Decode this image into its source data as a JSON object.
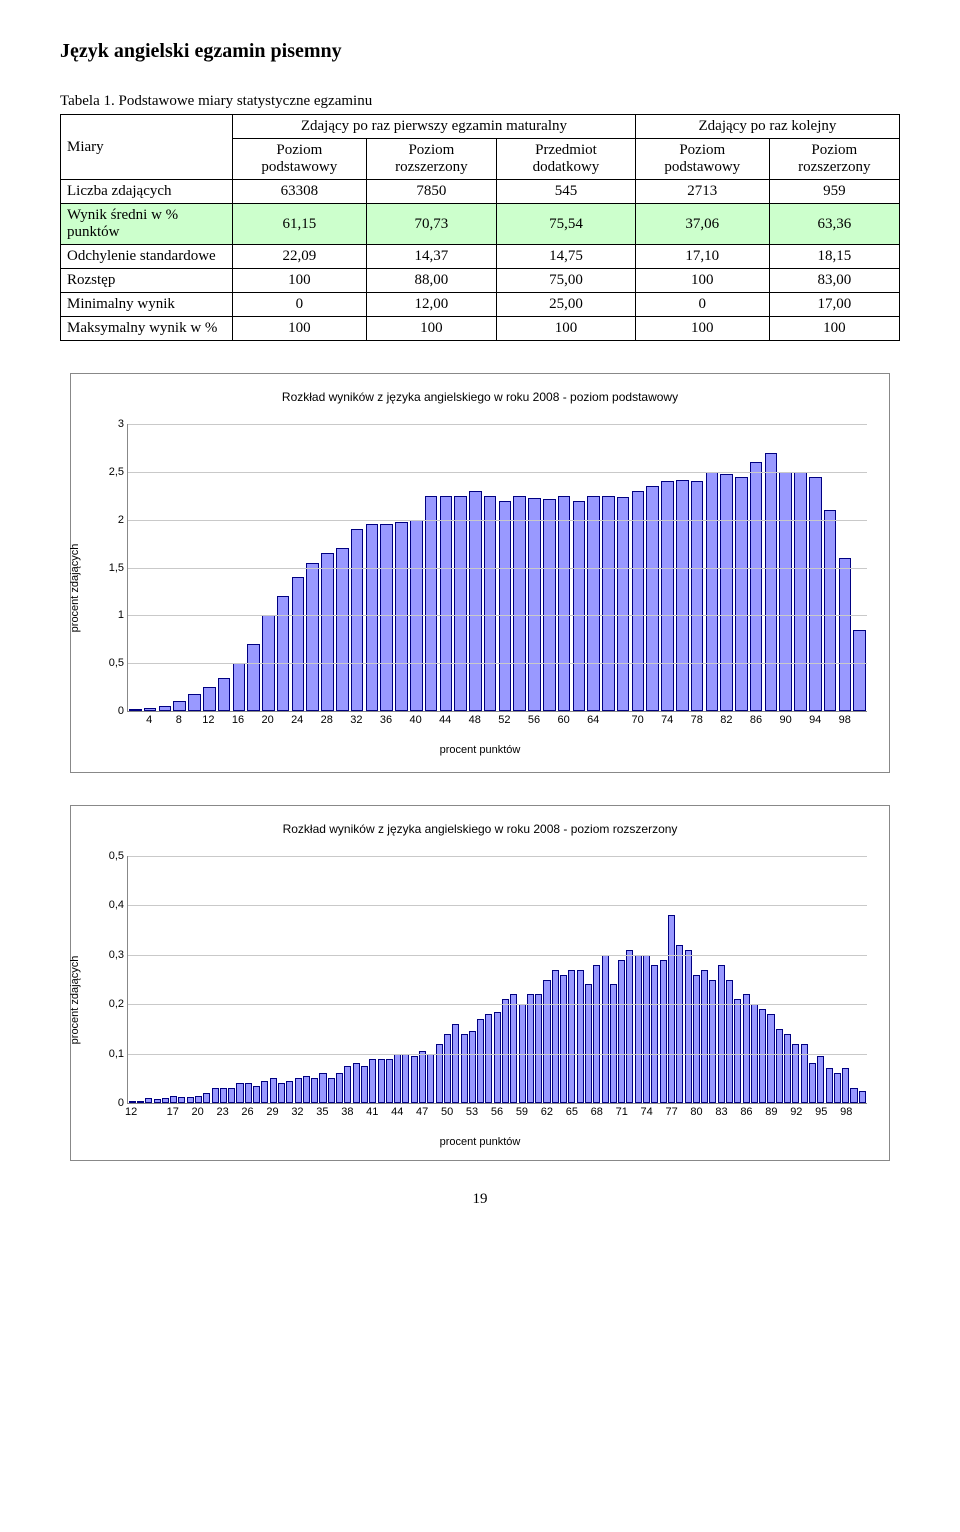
{
  "page_title": "Język angielski egzamin pisemny",
  "table_caption": "Tabela 1. Podstawowe miary statystyczne egzaminu",
  "header": {
    "miary": "Miary",
    "group1": "Zdający po raz pierwszy egzamin maturalny",
    "group2": "Zdający po raz kolejny",
    "col1": "Poziom podstawowy",
    "col2": "Poziom rozszerzony",
    "col3": "Przedmiot dodatkowy",
    "col4": "Poziom podstawowy",
    "col5": "Poziom rozszerzony"
  },
  "rows": {
    "liczba": {
      "label": "Liczba zdających",
      "v": [
        "63308",
        "7850",
        "545",
        "2713",
        "959"
      ]
    },
    "wynik": {
      "label": "Wynik średni w % punktów",
      "v": [
        "61,15",
        "70,73",
        "75,54",
        "37,06",
        "63,36"
      ],
      "highlight": true
    },
    "odch": {
      "label": "Odchylenie standardowe",
      "v": [
        "22,09",
        "14,37",
        "14,75",
        "17,10",
        "18,15"
      ]
    },
    "rozstep": {
      "label": "Rozstęp",
      "v": [
        "100",
        "88,00",
        "75,00",
        "100",
        "83,00"
      ]
    },
    "min": {
      "label": "Minimalny wynik",
      "v": [
        "0",
        "12,00",
        "25,00",
        "0",
        "17,00"
      ]
    },
    "max": {
      "label": "Maksymalny wynik w %",
      "v": [
        "100",
        "100",
        "100",
        "100",
        "100"
      ]
    }
  },
  "chart1": {
    "type": "bar",
    "title": "Rozkład wyników z języka angielskiego w roku 2008 - poziom podstawowy",
    "ylabel": "procent zdających",
    "xlabel": "procent punktów",
    "ylim": [
      0,
      3
    ],
    "ytick_step": 0.5,
    "bar_fill": "#9999ff",
    "bar_border": "#000080",
    "grid_color": "#c9c9c9",
    "x_values": [
      2,
      4,
      6,
      8,
      10,
      12,
      14,
      16,
      18,
      20,
      22,
      24,
      26,
      28,
      30,
      32,
      34,
      36,
      38,
      40,
      42,
      44,
      46,
      48,
      50,
      52,
      54,
      56,
      58,
      60,
      62,
      64,
      66,
      68,
      70,
      72,
      74,
      76,
      78,
      80,
      82,
      84,
      86,
      88,
      90,
      92,
      94,
      96,
      98,
      100
    ],
    "xtick_labels": [
      4,
      8,
      12,
      16,
      20,
      24,
      28,
      32,
      36,
      40,
      44,
      48,
      52,
      56,
      60,
      64,
      70,
      74,
      78,
      82,
      86,
      90,
      94,
      98
    ],
    "values": [
      0.02,
      0.03,
      0.05,
      0.1,
      0.18,
      0.25,
      0.35,
      0.5,
      0.7,
      1.0,
      1.2,
      1.4,
      1.55,
      1.65,
      1.7,
      1.9,
      1.95,
      1.95,
      1.98,
      2.0,
      2.25,
      2.25,
      2.25,
      2.3,
      2.25,
      2.2,
      2.25,
      2.23,
      2.22,
      2.25,
      2.2,
      2.25,
      2.25,
      2.24,
      2.3,
      2.35,
      2.4,
      2.42,
      2.4,
      2.5,
      2.48,
      2.45,
      2.6,
      2.7,
      2.5,
      2.5,
      2.45,
      2.1,
      1.6,
      0.85
    ]
  },
  "chart2": {
    "type": "bar",
    "title": "Rozkład wyników z języka angielskiego w roku 2008 - poziom rozszerzony",
    "ylabel": "procent zdających",
    "xlabel": "procent punktów",
    "ylim": [
      0,
      0.5
    ],
    "ytick_step": 0.1,
    "bar_fill": "#9999ff",
    "bar_border": "#000080",
    "grid_color": "#c9c9c9",
    "x_values": [
      12,
      13,
      14,
      15,
      16,
      17,
      18,
      19,
      20,
      21,
      22,
      23,
      24,
      25,
      26,
      27,
      28,
      29,
      30,
      31,
      32,
      33,
      34,
      35,
      36,
      37,
      38,
      39,
      40,
      41,
      42,
      43,
      44,
      45,
      46,
      47,
      48,
      49,
      50,
      51,
      52,
      53,
      54,
      55,
      56,
      57,
      58,
      59,
      60,
      61,
      62,
      63,
      64,
      65,
      66,
      67,
      68,
      69,
      70,
      71,
      72,
      73,
      74,
      75,
      76,
      77,
      78,
      79,
      80,
      81,
      82,
      83,
      84,
      85,
      86,
      87,
      88,
      89,
      90,
      91,
      92,
      93,
      94,
      95,
      96,
      97,
      98,
      99,
      100
    ],
    "xtick_labels": [
      12,
      17,
      20,
      23,
      26,
      29,
      32,
      35,
      38,
      41,
      44,
      47,
      50,
      53,
      56,
      59,
      62,
      65,
      68,
      71,
      74,
      77,
      80,
      83,
      86,
      89,
      92,
      95,
      98
    ],
    "values": [
      0.005,
      0.005,
      0.01,
      0.008,
      0.01,
      0.015,
      0.012,
      0.012,
      0.015,
      0.02,
      0.03,
      0.03,
      0.03,
      0.04,
      0.04,
      0.035,
      0.045,
      0.05,
      0.04,
      0.045,
      0.05,
      0.055,
      0.05,
      0.06,
      0.05,
      0.06,
      0.075,
      0.08,
      0.075,
      0.09,
      0.09,
      0.09,
      0.1,
      0.1,
      0.095,
      0.105,
      0.1,
      0.12,
      0.14,
      0.16,
      0.14,
      0.145,
      0.17,
      0.18,
      0.185,
      0.21,
      0.22,
      0.2,
      0.22,
      0.22,
      0.25,
      0.27,
      0.26,
      0.27,
      0.27,
      0.24,
      0.28,
      0.3,
      0.24,
      0.29,
      0.31,
      0.3,
      0.3,
      0.28,
      0.29,
      0.38,
      0.32,
      0.31,
      0.26,
      0.27,
      0.25,
      0.28,
      0.25,
      0.21,
      0.22,
      0.2,
      0.19,
      0.18,
      0.15,
      0.14,
      0.12,
      0.12,
      0.08,
      0.095,
      0.07,
      0.06,
      0.07,
      0.03,
      0.025
    ]
  },
  "page_number": "19"
}
